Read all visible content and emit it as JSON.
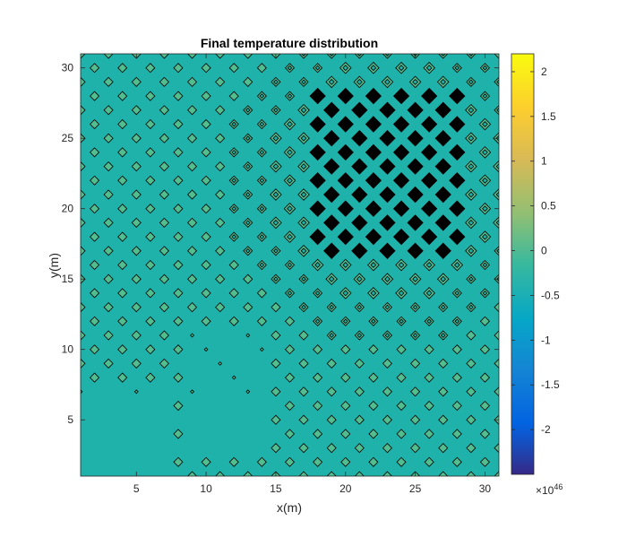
{
  "chart_data": {
    "type": "contour",
    "title": "Final temperature distribution",
    "xlabel": "x(m)",
    "ylabel": "y(m)",
    "xlim": [
      1,
      31
    ],
    "ylim": [
      1,
      31
    ],
    "xticks": [
      5,
      10,
      15,
      20,
      25,
      30
    ],
    "yticks": [
      5,
      10,
      15,
      20,
      25,
      30
    ],
    "grid": false,
    "field": {
      "background_value": -0.2,
      "description_of_values": "checkerboard pattern of diamond-shaped contours over a flat background",
      "hotspot": {
        "x_range": [
          18,
          28
        ],
        "y_range": [
          17,
          28
        ],
        "pattern": "dense black filled diamonds"
      }
    },
    "colorbar": {
      "range": [
        -2.5,
        2.2
      ],
      "ticks": [
        -2,
        -1.5,
        -1,
        -0.5,
        0,
        0.5,
        1,
        1.5,
        2
      ],
      "exponent_label": "×10",
      "exponent_power": "46",
      "colormap": "parula",
      "location": "right"
    },
    "colors": {
      "background_fill": "#1fb2aa",
      "contour_fill": "#52bd8e",
      "contour_line": "#000000",
      "hot_fill": "#000000"
    }
  }
}
